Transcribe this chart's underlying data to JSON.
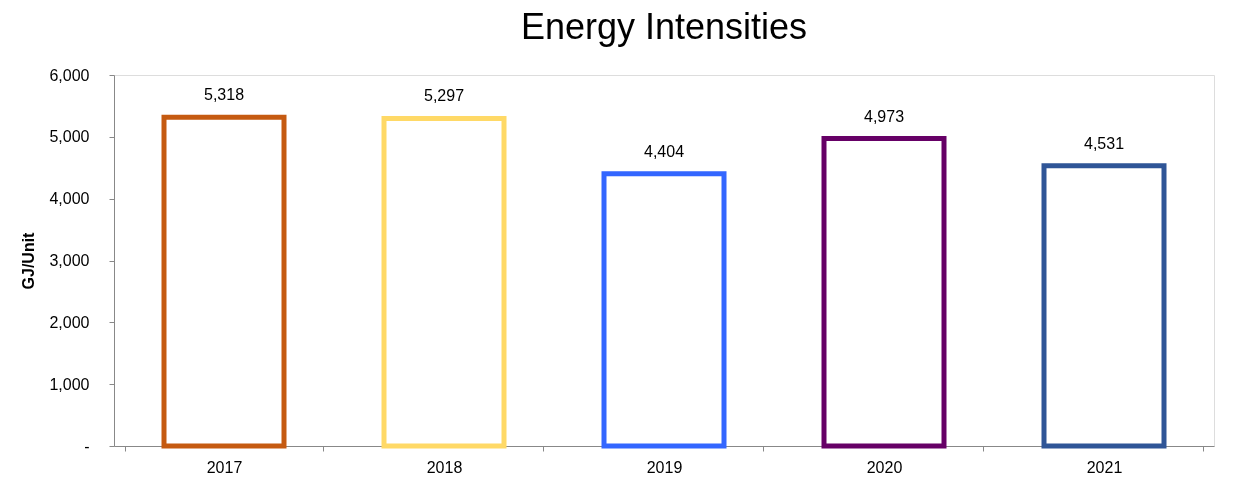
{
  "chart_data": {
    "type": "bar",
    "title": "Energy Intensities",
    "ylabel": "GJ/Unit",
    "categories": [
      "2017",
      "2018",
      "2019",
      "2020",
      "2021"
    ],
    "values": [
      5318,
      5297,
      4404,
      4973,
      4531
    ],
    "colors": [
      "#c55a11",
      "#ffd966",
      "#3366ff",
      "#660066",
      "#2f5597"
    ],
    "ylim": [
      0,
      6000
    ],
    "yticks": [
      {
        "value": 0,
        "label": "-"
      },
      {
        "value": 1000,
        "label": "1,000"
      },
      {
        "value": 2000,
        "label": "2,000"
      },
      {
        "value": 3000,
        "label": "3,000"
      },
      {
        "value": 4000,
        "label": "4,000"
      },
      {
        "value": 5000,
        "label": "5,000"
      },
      {
        "value": 6000,
        "label": "6,000"
      }
    ],
    "value_labels": [
      "5,318",
      "5,297",
      "4,404",
      "4,973",
      "4,531"
    ],
    "grid": false,
    "legend": false
  }
}
